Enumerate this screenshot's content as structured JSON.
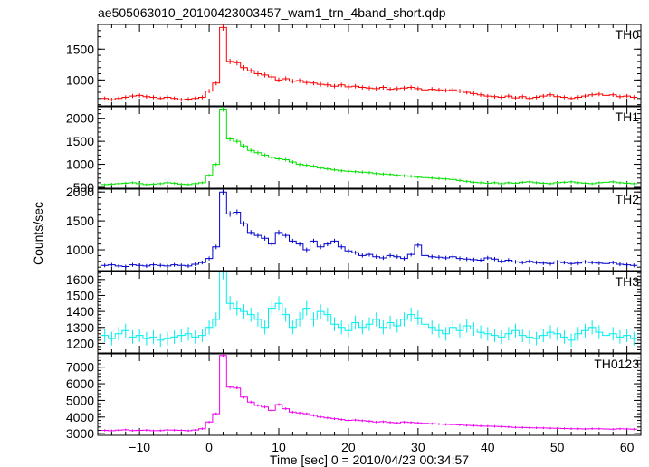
{
  "window": {
    "title": "ae505063010_20100423003457_wam1_trn_4band_short.qdp"
  },
  "chart_data": {
    "type": "line",
    "title": "ae505063010_20100423003457_wam1_trn_4band_short.qdp",
    "xlabel": "Time [sec] 0 = 2010/04/23 00:34:57",
    "ylabel": "Counts/sec",
    "xlim": [
      -16,
      62
    ],
    "x_ticks": [
      -10,
      0,
      10,
      20,
      30,
      40,
      50,
      60
    ],
    "x_tick_labels": [
      "−10",
      "0",
      "10",
      "20",
      "30",
      "40",
      "50",
      "60"
    ],
    "bin_width_sec": 1,
    "panels": [
      {
        "name": "TH0",
        "color": "#ff0000",
        "ylim": [
          580,
          1900
        ],
        "y_ticks": [
          1000,
          1500
        ],
        "y_tick_labels": [
          "1000",
          "1500"
        ],
        "x": [
          -15,
          -14,
          -13,
          -12,
          -11,
          -10,
          -9,
          -8,
          -7,
          -6,
          -5,
          -4,
          -3,
          -2,
          -1,
          0,
          1,
          2,
          3,
          4,
          5,
          6,
          7,
          8,
          9,
          10,
          11,
          12,
          13,
          14,
          15,
          16,
          17,
          18,
          19,
          20,
          21,
          22,
          23,
          24,
          25,
          26,
          27,
          28,
          29,
          30,
          31,
          32,
          33,
          34,
          35,
          36,
          37,
          38,
          39,
          40,
          41,
          42,
          43,
          44,
          45,
          46,
          47,
          48,
          49,
          50,
          51,
          52,
          53,
          54,
          55,
          56,
          57,
          58,
          59,
          60,
          61
        ],
        "y": [
          700,
          680,
          700,
          720,
          740,
          750,
          730,
          720,
          700,
          720,
          700,
          680,
          690,
          700,
          720,
          820,
          950,
          1850,
          1300,
          1280,
          1200,
          1150,
          1100,
          1080,
          1050,
          1000,
          1020,
          980,
          990,
          960,
          950,
          930,
          920,
          900,
          920,
          890,
          900,
          880,
          870,
          860,
          880,
          850,
          860,
          870,
          880,
          860,
          840,
          850,
          840,
          830,
          840,
          820,
          800,
          780,
          760,
          740,
          730,
          720,
          740,
          710,
          730,
          700,
          720,
          740,
          760,
          730,
          720,
          700,
          720,
          740,
          760,
          770,
          750,
          760,
          730,
          740,
          720
        ]
      },
      {
        "name": "TH1",
        "color": "#00e000",
        "ylim": [
          480,
          2250
        ],
        "y_ticks": [
          500,
          1000,
          1500,
          2000
        ],
        "y_tick_labels": [
          "500",
          "1000",
          "1500",
          "2000"
        ],
        "x": [
          -15,
          -14,
          -13,
          -12,
          -11,
          -10,
          -9,
          -8,
          -7,
          -6,
          -5,
          -4,
          -3,
          -2,
          -1,
          0,
          1,
          2,
          3,
          4,
          5,
          6,
          7,
          8,
          9,
          10,
          11,
          12,
          13,
          14,
          15,
          16,
          17,
          18,
          19,
          20,
          21,
          22,
          23,
          24,
          25,
          26,
          27,
          28,
          29,
          30,
          31,
          32,
          33,
          34,
          35,
          36,
          37,
          38,
          39,
          40,
          41,
          42,
          43,
          44,
          45,
          46,
          47,
          48,
          49,
          50,
          51,
          52,
          53,
          54,
          55,
          56,
          57,
          58,
          59,
          60,
          61
        ],
        "y": [
          560,
          570,
          580,
          590,
          600,
          580,
          560,
          570,
          580,
          600,
          590,
          570,
          560,
          580,
          600,
          760,
          1000,
          2200,
          1550,
          1500,
          1400,
          1300,
          1250,
          1200,
          1150,
          1120,
          1100,
          1050,
          1000,
          980,
          960,
          920,
          900,
          880,
          860,
          850,
          840,
          830,
          820,
          800,
          790,
          780,
          760,
          750,
          740,
          720,
          710,
          700,
          690,
          680,
          670,
          650,
          630,
          610,
          600,
          590,
          600,
          580,
          600,
          590,
          610,
          620,
          600,
          590,
          580,
          600,
          610,
          620,
          600,
          590,
          580,
          600,
          610,
          620,
          600,
          590,
          580
        ]
      },
      {
        "name": "TH2",
        "color": "#0000cc",
        "ylim": [
          640,
          2050
        ],
        "y_ticks": [
          1000,
          1500,
          2000
        ],
        "y_tick_labels": [
          "1000",
          "1500",
          "2000"
        ],
        "x": [
          -15,
          -14,
          -13,
          -12,
          -11,
          -10,
          -9,
          -8,
          -7,
          -6,
          -5,
          -4,
          -3,
          -2,
          -1,
          0,
          1,
          2,
          3,
          4,
          5,
          6,
          7,
          8,
          9,
          10,
          11,
          12,
          13,
          14,
          15,
          16,
          17,
          18,
          19,
          20,
          21,
          22,
          23,
          24,
          25,
          26,
          27,
          28,
          29,
          30,
          31,
          32,
          33,
          34,
          35,
          36,
          37,
          38,
          39,
          40,
          41,
          42,
          43,
          44,
          45,
          46,
          47,
          48,
          49,
          50,
          51,
          52,
          53,
          54,
          55,
          56,
          57,
          58,
          59,
          60,
          61
        ],
        "y": [
          730,
          740,
          720,
          710,
          740,
          730,
          720,
          740,
          730,
          720,
          740,
          730,
          720,
          750,
          780,
          850,
          1050,
          2000,
          1620,
          1650,
          1450,
          1300,
          1250,
          1200,
          1100,
          1300,
          1250,
          1150,
          1100,
          1000,
          1150,
          1050,
          1100,
          1150,
          1050,
          980,
          950,
          900,
          920,
          880,
          860,
          900,
          880,
          850,
          920,
          1080,
          900,
          880,
          870,
          860,
          880,
          850,
          840,
          830,
          820,
          860,
          840,
          800,
          820,
          790,
          780,
          800,
          780,
          770,
          760,
          790,
          780,
          760,
          770,
          790,
          780,
          770,
          760,
          780,
          750,
          740,
          730
        ]
      },
      {
        "name": "TH3",
        "color": "#00eeee",
        "ylim": [
          1140,
          1650
        ],
        "y_ticks": [
          1200,
          1300,
          1400,
          1500,
          1600
        ],
        "y_tick_labels": [
          "1200",
          "1300",
          "1400",
          "1500",
          "1600"
        ],
        "x": [
          -15,
          -14,
          -13,
          -12,
          -11,
          -10,
          -9,
          -8,
          -7,
          -6,
          -5,
          -4,
          -3,
          -2,
          -1,
          0,
          1,
          2,
          3,
          4,
          5,
          6,
          7,
          8,
          9,
          10,
          11,
          12,
          13,
          14,
          15,
          16,
          17,
          18,
          19,
          20,
          21,
          22,
          23,
          24,
          25,
          26,
          27,
          28,
          29,
          30,
          31,
          32,
          33,
          34,
          35,
          36,
          37,
          38,
          39,
          40,
          41,
          42,
          43,
          44,
          45,
          46,
          47,
          48,
          49,
          50,
          51,
          52,
          53,
          54,
          55,
          56,
          57,
          58,
          59,
          60,
          61
        ],
        "y": [
          1250,
          1230,
          1260,
          1280,
          1240,
          1250,
          1230,
          1240,
          1220,
          1230,
          1240,
          1250,
          1260,
          1240,
          1250,
          1300,
          1350,
          1650,
          1450,
          1420,
          1400,
          1380,
          1350,
          1300,
          1420,
          1450,
          1380,
          1300,
          1350,
          1420,
          1350,
          1400,
          1380,
          1320,
          1300,
          1280,
          1330,
          1300,
          1320,
          1350,
          1300,
          1330,
          1310,
          1350,
          1380,
          1360,
          1320,
          1300,
          1280,
          1260,
          1300,
          1280,
          1310,
          1290,
          1270,
          1260,
          1250,
          1240,
          1260,
          1280,
          1250,
          1240,
          1230,
          1250,
          1270,
          1260,
          1240,
          1220,
          1260,
          1280,
          1300,
          1270,
          1250,
          1260,
          1240,
          1250,
          1230
        ]
      },
      {
        "name": "TH0123",
        "color": "#ee00ee",
        "ylim": [
          2900,
          7800
        ],
        "y_ticks": [
          3000,
          4000,
          5000,
          6000,
          7000
        ],
        "y_tick_labels": [
          "3000",
          "4000",
          "5000",
          "6000",
          "7000"
        ],
        "x": [
          -15,
          -14,
          -13,
          -12,
          -11,
          -10,
          -9,
          -8,
          -7,
          -6,
          -5,
          -4,
          -3,
          -2,
          -1,
          0,
          1,
          2,
          3,
          4,
          5,
          6,
          7,
          8,
          9,
          10,
          11,
          12,
          13,
          14,
          15,
          16,
          17,
          18,
          19,
          20,
          21,
          22,
          23,
          24,
          25,
          26,
          27,
          28,
          29,
          30,
          31,
          32,
          33,
          34,
          35,
          36,
          37,
          38,
          39,
          40,
          41,
          42,
          43,
          44,
          45,
          46,
          47,
          48,
          49,
          50,
          51,
          52,
          53,
          54,
          55,
          56,
          57,
          58,
          59,
          60,
          61
        ],
        "y": [
          3200,
          3180,
          3210,
          3230,
          3190,
          3200,
          3210,
          3180,
          3190,
          3220,
          3210,
          3200,
          3180,
          3220,
          3300,
          3700,
          4200,
          7700,
          5800,
          5750,
          5200,
          4900,
          4700,
          4600,
          4400,
          4750,
          4500,
          4300,
          4250,
          4200,
          4100,
          4000,
          3950,
          3900,
          3850,
          3800,
          3820,
          3780,
          3750,
          3700,
          3720,
          3680,
          3650,
          3700,
          3680,
          3650,
          3620,
          3600,
          3580,
          3560,
          3550,
          3530,
          3500,
          3480,
          3460,
          3450,
          3440,
          3420,
          3400,
          3380,
          3370,
          3360,
          3350,
          3340,
          3330,
          3320,
          3310,
          3300,
          3290,
          3280,
          3300,
          3290,
          3280,
          3270,
          3290,
          3280,
          3270
        ]
      }
    ]
  }
}
